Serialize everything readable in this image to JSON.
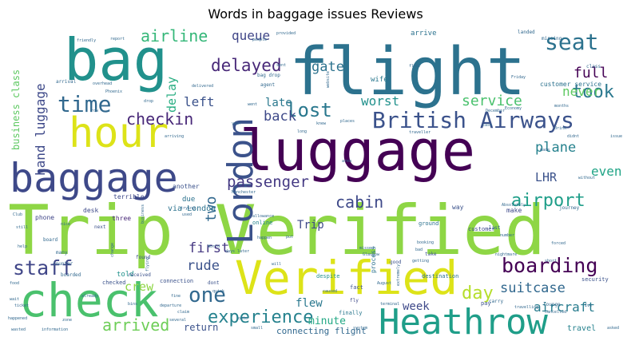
{
  "chart_data": {
    "type": "wordcloud",
    "title": "Words in baggage issues Reviews",
    "palette": "viridis",
    "words": [
      {
        "text": "Trip Verified",
        "weight": 100,
        "color": "#8ed645"
      },
      {
        "text": "flight",
        "weight": 92,
        "color": "#2c728e"
      },
      {
        "text": "luggage",
        "weight": 82,
        "color": "#440154"
      },
      {
        "text": "bag",
        "weight": 74,
        "color": "#21918c"
      },
      {
        "text": "check",
        "weight": 68,
        "color": "#4ac16d"
      },
      {
        "text": "Verified",
        "weight": 66,
        "color": "#dde318"
      },
      {
        "text": "baggage",
        "weight": 60,
        "color": "#3e4989"
      },
      {
        "text": "hour",
        "weight": 58,
        "color": "#dde318"
      },
      {
        "text": "Heathrow",
        "weight": 55,
        "color": "#1f9e89"
      },
      {
        "text": "London",
        "weight": 53,
        "color": "#3b528b"
      },
      {
        "text": "British Airways",
        "weight": 42,
        "color": "#3b528b"
      },
      {
        "text": "seat",
        "weight": 36,
        "color": "#2c728e"
      },
      {
        "text": "time",
        "weight": 34,
        "color": "#31688e"
      },
      {
        "text": "one",
        "weight": 32,
        "color": "#31688e"
      },
      {
        "text": "boarding",
        "weight": 32,
        "color": "#440154"
      },
      {
        "text": "staff",
        "weight": 31,
        "color": "#404688"
      },
      {
        "text": "lost",
        "weight": 30,
        "color": "#2a788e"
      },
      {
        "text": "experience",
        "weight": 29,
        "color": "#26828e"
      },
      {
        "text": "took",
        "weight": 28,
        "color": "#2a788e"
      },
      {
        "text": "airport",
        "weight": 28,
        "color": "#1f9e89"
      },
      {
        "text": "day",
        "weight": 28,
        "color": "#b5de2b"
      },
      {
        "text": "delayed",
        "weight": 27,
        "color": "#482878"
      },
      {
        "text": "airline",
        "weight": 26,
        "color": "#35b779"
      },
      {
        "text": "arrived",
        "weight": 26,
        "color": "#6ece58"
      },
      {
        "text": "checkin",
        "weight": 25,
        "color": "#482878"
      },
      {
        "text": "passenger",
        "weight": 25,
        "color": "#443983"
      },
      {
        "text": "cabin",
        "weight": 24,
        "color": "#3e4989"
      },
      {
        "text": "two",
        "weight": 24,
        "color": "#31688e"
      },
      {
        "text": "suitcase",
        "weight": 22,
        "color": "#31688e"
      },
      {
        "text": "plane",
        "weight": 22,
        "color": "#26828e"
      },
      {
        "text": "service",
        "weight": 22,
        "color": "#4ac16d"
      },
      {
        "text": "hand luggage",
        "weight": 21,
        "color": "#3e4989"
      },
      {
        "text": "full",
        "weight": 21,
        "color": "#440154"
      },
      {
        "text": "rude",
        "weight": 20,
        "color": "#3b528b"
      },
      {
        "text": "aircraft",
        "weight": 20,
        "color": "#287c8e"
      },
      {
        "text": "first",
        "weight": 19,
        "color": "#453781"
      },
      {
        "text": "back",
        "weight": 19,
        "color": "#3e4989"
      },
      {
        "text": "never",
        "weight": 19,
        "color": "#5ec962"
      },
      {
        "text": "even",
        "weight": 19,
        "color": "#20a486"
      },
      {
        "text": "LHR",
        "weight": 17,
        "color": "#3b528b"
      },
      {
        "text": "left",
        "weight": 18,
        "color": "#3b528b"
      },
      {
        "text": "gate",
        "weight": 18,
        "color": "#2c728e"
      },
      {
        "text": "queue",
        "weight": 17,
        "color": "#404688"
      },
      {
        "text": "delay",
        "weight": 17,
        "color": "#27ad81"
      },
      {
        "text": "worst",
        "weight": 16,
        "color": "#21918c"
      },
      {
        "text": "late",
        "weight": 15,
        "color": "#2a788e"
      },
      {
        "text": "crew",
        "weight": 16,
        "color": "#8ed645"
      },
      {
        "text": "flew",
        "weight": 15,
        "color": "#2a788e"
      },
      {
        "text": "week",
        "weight": 15,
        "color": "#3e4989"
      },
      {
        "text": "minute",
        "weight": 14,
        "color": "#22a884"
      },
      {
        "text": "Trip",
        "weight": 14,
        "color": "#3e4989"
      },
      {
        "text": "business class",
        "weight": 13,
        "color": "#5ec962"
      },
      {
        "text": "return",
        "weight": 12,
        "color": "#3b528b"
      },
      {
        "text": "connecting flight",
        "weight": 11,
        "color": "#31688e"
      },
      {
        "text": "travel",
        "weight": 11,
        "color": "#26828e"
      },
      {
        "text": "via London",
        "weight": 10,
        "color": "#2c728e"
      },
      {
        "text": "arrive",
        "weight": 9,
        "color": "#2c728e"
      },
      {
        "text": "wife",
        "weight": 9,
        "color": "#2a788e"
      },
      {
        "text": "told",
        "weight": 9,
        "color": "#21918c"
      },
      {
        "text": "due",
        "weight": 9,
        "color": "#2c728e"
      },
      {
        "text": "another",
        "weight": 8,
        "color": "#3b528b"
      },
      {
        "text": "terrible",
        "weight": 8,
        "color": "#3e4989"
      },
      {
        "text": "three",
        "weight": 8,
        "color": "#482878"
      },
      {
        "text": "phone",
        "weight": 8,
        "color": "#404688"
      },
      {
        "text": "desk",
        "weight": 8,
        "color": "#3e4989"
      },
      {
        "text": "make",
        "weight": 8,
        "color": "#3e4989"
      },
      {
        "text": "way",
        "weight": 8,
        "color": "#3b528b"
      },
      {
        "text": "customer service",
        "weight": 8,
        "color": "#2c728e"
      },
      {
        "text": "process",
        "weight": 8,
        "color": "#2c728e"
      },
      {
        "text": "security",
        "weight": 7,
        "color": "#3b528b"
      },
      {
        "text": "checked",
        "weight": 7,
        "color": "#3b528b"
      },
      {
        "text": "connection",
        "weight": 7,
        "color": "#3b528b"
      },
      {
        "text": "despite",
        "weight": 7,
        "color": "#21918c"
      },
      {
        "text": "finally",
        "weight": 7,
        "color": "#2a788e"
      },
      {
        "text": "online",
        "weight": 7,
        "color": "#26828e"
      },
      {
        "text": "customer",
        "weight": 7,
        "color": "#3e4989"
      },
      {
        "text": "destination",
        "weight": 7,
        "color": "#2c728e"
      },
      {
        "text": "ground",
        "weight": 7,
        "color": "#2c728e"
      },
      {
        "text": "fact",
        "weight": 7,
        "color": "#3b528b"
      },
      {
        "text": "pay",
        "weight": 7,
        "color": "#3b528b"
      },
      {
        "text": "fly",
        "weight": 6,
        "color": "#3e4989"
      },
      {
        "text": "next",
        "weight": 6,
        "color": "#3b528b"
      },
      {
        "text": "received",
        "weight": 6,
        "color": "#3b528b"
      },
      {
        "text": "dont",
        "weight": 6,
        "color": "#3b528b"
      },
      {
        "text": "found",
        "weight": 6,
        "color": "#3b528b"
      },
      {
        "text": "good",
        "weight": 6,
        "color": "#3b528b"
      },
      {
        "text": "take",
        "weight": 6,
        "color": "#3b528b"
      },
      {
        "text": "agent",
        "weight": 6,
        "color": "#31688e"
      },
      {
        "text": "bag drop",
        "weight": 6,
        "color": "#31688e"
      },
      {
        "text": "arrival",
        "weight": 6,
        "color": "#31688e"
      },
      {
        "text": "board",
        "weight": 6,
        "color": "#31688e"
      },
      {
        "text": "counter",
        "weight": 6,
        "color": "#31688e"
      },
      {
        "text": "many",
        "weight": 6,
        "color": "#31688e"
      },
      {
        "text": "boarded",
        "weight": 6,
        "color": "#31688e"
      },
      {
        "text": "carry",
        "weight": 6,
        "color": "#31688e"
      },
      {
        "text": "lounge",
        "weight": 6,
        "color": "#31688e"
      },
      {
        "text": "last",
        "weight": 6,
        "color": "#31688e"
      },
      {
        "text": "class",
        "weight": 6,
        "color": "#31688e"
      },
      {
        "text": "landed",
        "weight": 6,
        "color": "#31688e"
      },
      {
        "text": "missing",
        "weight": 6,
        "color": "#31688e"
      },
      {
        "text": "journey",
        "weight": 6,
        "color": "#31688e"
      },
      {
        "text": "number",
        "weight": 5,
        "color": "#31688e"
      },
      {
        "text": "delivered",
        "weight": 5,
        "color": "#31688e"
      },
      {
        "text": "will",
        "weight": 5,
        "color": "#31688e"
      },
      {
        "text": "terminal",
        "weight": 5,
        "color": "#31688e"
      },
      {
        "text": "Ive",
        "weight": 5,
        "color": "#31688e"
      },
      {
        "text": "still",
        "weight": 5,
        "color": "#31688e"
      },
      {
        "text": "nice",
        "weight": 5,
        "color": "#31688e"
      },
      {
        "text": "drop",
        "weight": 5,
        "color": "#31688e"
      },
      {
        "text": "sent",
        "weight": 5,
        "color": "#31688e"
      },
      {
        "text": "people",
        "weight": 5,
        "color": "#31688e"
      },
      {
        "text": "Club",
        "weight": 5,
        "color": "#31688e"
      },
      {
        "text": "zone",
        "weight": 5,
        "color": "#31688e"
      },
      {
        "text": "nightmare",
        "weight": 5,
        "color": "#31688e"
      },
      {
        "text": "system",
        "weight": 5,
        "color": "#31688e"
      },
      {
        "text": "information",
        "weight": 5,
        "color": "#31688e"
      },
      {
        "text": "wasted",
        "weight": 5,
        "color": "#31688e"
      },
      {
        "text": "happened",
        "weight": 5,
        "color": "#31688e"
      },
      {
        "text": "ticket",
        "weight": 5,
        "color": "#31688e"
      },
      {
        "text": "cancelled",
        "weight": 5,
        "color": "#31688e"
      },
      {
        "text": "asked",
        "weight": 5,
        "color": "#31688e"
      },
      {
        "text": "travelling",
        "weight": 5,
        "color": "#31688e"
      },
      {
        "text": "forced",
        "weight": 5,
        "color": "#31688e"
      },
      {
        "text": "fine",
        "weight": 5,
        "color": "#31688e"
      },
      {
        "text": "several",
        "weight": 5,
        "color": "#31688e"
      },
      {
        "text": "claim",
        "weight": 5,
        "color": "#31688e"
      },
      {
        "text": "quick",
        "weight": 5,
        "color": "#31688e"
      },
      {
        "text": "missed",
        "weight": 5,
        "color": "#31688e"
      },
      {
        "text": "bad",
        "weight": 5,
        "color": "#31688e"
      },
      {
        "text": "getting",
        "weight": 5,
        "color": "#31688e"
      },
      {
        "text": "Economy",
        "weight": 5,
        "color": "#31688e"
      },
      {
        "text": "traveller",
        "weight": 5,
        "color": "#31688e"
      },
      {
        "text": "trying",
        "weight": 5,
        "color": "#31688e"
      },
      {
        "text": "used",
        "weight": 5,
        "color": "#31688e"
      },
      {
        "text": "made",
        "weight": 5,
        "color": "#31688e"
      },
      {
        "text": "friendly",
        "weight": 5,
        "color": "#31688e"
      },
      {
        "text": "report",
        "weight": 5,
        "color": "#31688e"
      },
      {
        "text": "provided",
        "weight": 5,
        "color": "#31688e"
      },
      {
        "text": "overhead",
        "weight": 5,
        "color": "#31688e"
      },
      {
        "text": "months",
        "weight": 5,
        "color": "#31688e"
      },
      {
        "text": "change",
        "weight": 5,
        "color": "#31688e"
      },
      {
        "text": "World",
        "weight": 5,
        "color": "#31688e"
      },
      {
        "text": "Manchester",
        "weight": 5,
        "color": "#31688e"
      },
      {
        "text": "allowance",
        "weight": 5,
        "color": "#31688e"
      },
      {
        "text": "departure",
        "weight": 5,
        "color": "#31688e"
      },
      {
        "text": "drink",
        "weight": 5,
        "color": "#31688e"
      },
      {
        "text": "arriving",
        "weight": 5,
        "color": "#31688e"
      },
      {
        "text": "didnt",
        "weight": 5,
        "color": "#31688e"
      },
      {
        "text": "year",
        "weight": 5,
        "color": "#31688e"
      },
      {
        "text": "area",
        "weight": 5,
        "color": "#31688e"
      },
      {
        "text": "Absolutely",
        "weight": 5,
        "color": "#31688e"
      },
      {
        "text": "August",
        "weight": 5,
        "color": "#31688e"
      },
      {
        "text": "happen",
        "weight": 5,
        "color": "#31688e"
      },
      {
        "text": "put",
        "weight": 5,
        "color": "#31688e"
      },
      {
        "text": "December",
        "weight": 5,
        "color": "#31688e"
      },
      {
        "text": "Glasgow",
        "weight": 5,
        "color": "#31688e"
      },
      {
        "text": "floor",
        "weight": 5,
        "color": "#31688e"
      },
      {
        "text": "knew",
        "weight": 5,
        "color": "#31688e"
      },
      {
        "text": "long",
        "weight": 5,
        "color": "#31688e"
      },
      {
        "text": "places",
        "weight": 5,
        "color": "#31688e"
      },
      {
        "text": "case",
        "weight": 5,
        "color": "#31688e"
      },
      {
        "text": "short",
        "weight": 5,
        "color": "#31688e"
      },
      {
        "text": "went",
        "weight": 5,
        "color": "#31688e"
      },
      {
        "text": "small",
        "weight": 5,
        "color": "#31688e"
      },
      {
        "text": "onto",
        "weight": 5,
        "color": "#31688e"
      },
      {
        "text": "help",
        "weight": 5,
        "color": "#31688e"
      },
      {
        "text": "food",
        "weight": 5,
        "color": "#31688e"
      },
      {
        "text": "wait",
        "weight": 5,
        "color": "#31688e"
      },
      {
        "text": "bins",
        "weight": 5,
        "color": "#31688e"
      },
      {
        "text": "already",
        "weight": 5,
        "color": "#31688e"
      },
      {
        "text": "Phoenix",
        "weight": 5,
        "color": "#31688e"
      },
      {
        "text": "days later",
        "weight": 5,
        "color": "#31688e"
      },
      {
        "text": "website",
        "weight": 5,
        "color": "#31688e"
      },
      {
        "text": "extremely",
        "weight": 5,
        "color": "#31688e"
      },
      {
        "text": "booking",
        "weight": 5,
        "color": "#31688e"
      },
      {
        "text": "without",
        "weight": 5,
        "color": "#31688e"
      },
      {
        "text": "business",
        "weight": 5,
        "color": "#31688e"
      },
      {
        "text": "issue",
        "weight": 5,
        "color": "#31688e"
      },
      {
        "text": "Friday",
        "weight": 5,
        "color": "#31688e"
      },
      {
        "text": "flying",
        "weight": 5,
        "color": "#31688e"
      },
      {
        "text": "caused",
        "weight": 5,
        "color": "#31688e"
      },
      {
        "text": "row",
        "weight": 5,
        "color": "#31688e"
      }
    ]
  }
}
